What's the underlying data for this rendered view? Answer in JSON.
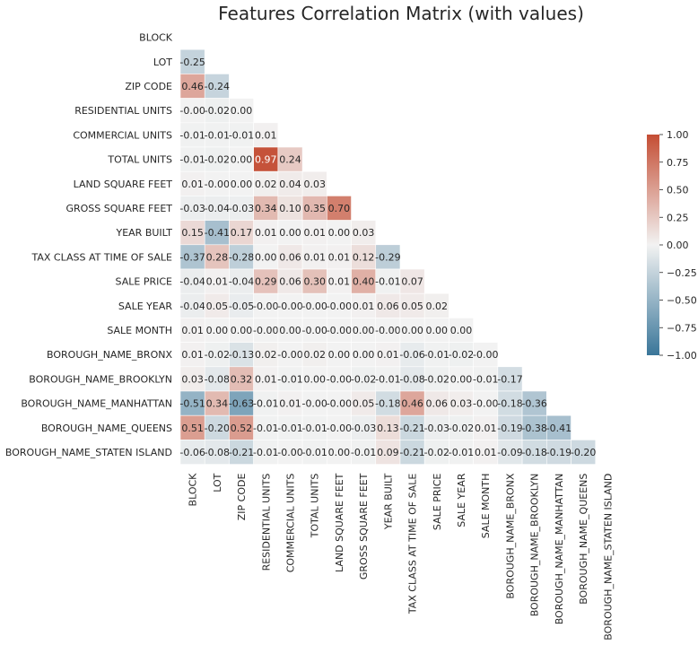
{
  "chart_data": {
    "type": "heatmap",
    "title": "Features Correlation Matrix (with values)",
    "xlabel": "",
    "ylabel": "",
    "labels": [
      "BLOCK",
      "LOT",
      "ZIP CODE",
      "RESIDENTIAL UNITS",
      "COMMERCIAL UNITS",
      "TOTAL UNITS",
      "LAND SQUARE FEET",
      "GROSS SQUARE FEET",
      "YEAR BUILT",
      "TAX CLASS AT TIME OF SALE",
      "SALE PRICE",
      "SALE YEAR",
      "SALE MONTH",
      "BOROUGH_NAME_BRONX",
      "BOROUGH_NAME_BROOKLYN",
      "BOROUGH_NAME_MANHATTAN",
      "BOROUGH_NAME_QUEENS",
      "BOROUGH_NAME_STATEN ISLAND"
    ],
    "mask": "upper-triangle-including-diagonal",
    "values": [
      [],
      [
        -0.25
      ],
      [
        0.46,
        -0.24
      ],
      [
        -0.0,
        -0.02,
        0.0
      ],
      [
        -0.01,
        -0.01,
        -0.01,
        0.01
      ],
      [
        -0.01,
        -0.02,
        0.0,
        0.97,
        0.24
      ],
      [
        0.01,
        -0.0,
        0.0,
        0.02,
        0.04,
        0.03
      ],
      [
        -0.03,
        -0.04,
        -0.03,
        0.34,
        0.1,
        0.35,
        0.7
      ],
      [
        0.15,
        -0.41,
        0.17,
        0.01,
        0.0,
        0.01,
        0.0,
        0.03
      ],
      [
        -0.37,
        0.28,
        -0.28,
        0.0,
        0.06,
        0.01,
        0.01,
        0.12,
        -0.29
      ],
      [
        -0.04,
        0.01,
        -0.04,
        0.29,
        0.06,
        0.3,
        0.01,
        0.4,
        -0.01,
        0.07
      ],
      [
        -0.04,
        0.05,
        -0.05,
        -0.0,
        -0.0,
        -0.0,
        -0.0,
        0.01,
        0.06,
        0.05,
        0.02
      ],
      [
        0.01,
        0.0,
        0.0,
        -0.0,
        0.0,
        -0.0,
        -0.0,
        0.0,
        -0.0,
        0.0,
        0.0,
        0.0
      ],
      [
        0.01,
        -0.02,
        -0.13,
        0.02,
        -0.0,
        0.02,
        0.0,
        0.0,
        0.01,
        -0.06,
        -0.01,
        -0.02,
        -0.0
      ],
      [
        0.03,
        -0.08,
        0.32,
        0.01,
        -0.01,
        0.0,
        -0.0,
        -0.02,
        -0.01,
        -0.08,
        -0.02,
        0.0,
        -0.01,
        -0.17
      ],
      [
        -0.51,
        0.34,
        -0.63,
        -0.01,
        0.01,
        -0.0,
        -0.0,
        0.05,
        -0.18,
        0.46,
        0.06,
        0.03,
        -0.0,
        -0.18,
        -0.36
      ],
      [
        0.51,
        -0.2,
        0.52,
        -0.01,
        -0.01,
        -0.01,
        -0.0,
        -0.03,
        0.13,
        -0.21,
        -0.03,
        -0.02,
        0.01,
        -0.19,
        -0.38,
        -0.41
      ],
      [
        -0.06,
        -0.08,
        -0.21,
        -0.01,
        -0.0,
        -0.01,
        0.0,
        -0.01,
        0.09,
        -0.21,
        -0.02,
        -0.01,
        0.01,
        -0.09,
        -0.18,
        -0.19,
        -0.2
      ]
    ],
    "vmin": -1.0,
    "vmax": 1.0,
    "colorbar_ticks": [
      "1.00",
      "0.75",
      "0.50",
      "0.25",
      "0.00",
      "−0.25",
      "−0.50",
      "−0.75",
      "−1.00"
    ],
    "colormap": "diverging blue-white-red",
    "color_negative": "#3a7699",
    "color_center": "#f2f2f2",
    "color_positive": "#c44d34",
    "grid_lines": "white"
  }
}
